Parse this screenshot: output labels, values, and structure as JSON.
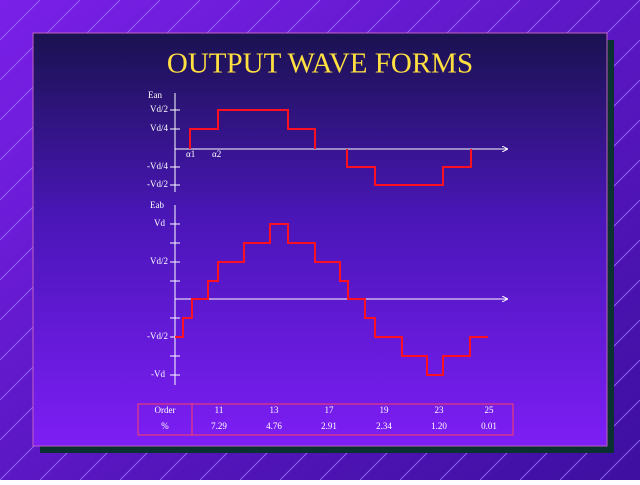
{
  "title": "OUTPUT WAVE FORMS",
  "wave1": {
    "label": "Ean",
    "y_labels": [
      "Vd/2",
      "Vd/4",
      "-Vd/4",
      "-Vd/2"
    ],
    "angle_labels": [
      "α1",
      "α2"
    ]
  },
  "wave2": {
    "label": "Eab",
    "y_labels": [
      "Vd",
      "Vd/2",
      "-Vd/2",
      "-Vd"
    ]
  },
  "table": {
    "rows": [
      [
        "Order",
        "11",
        "13",
        "17",
        "19",
        "23",
        "25"
      ],
      [
        "%",
        "7.29",
        "4.76",
        "2.91",
        "2.34",
        "1.20",
        "0.01"
      ]
    ]
  }
}
